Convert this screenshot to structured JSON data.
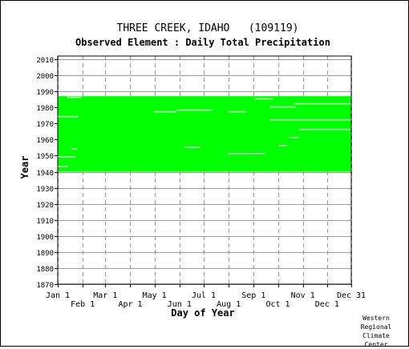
{
  "chart_data": {
    "type": "area",
    "title": "THREE CREEK, IDAHO   (109119)",
    "subtitle": "Observed Element : Daily Total Precipitation",
    "xlabel": "Day of Year",
    "ylabel": "Year",
    "x_ticks_top": [
      "Jan 1",
      "Mar 1",
      "May 1",
      "Jul 1",
      "Sep 1",
      "Nov 1",
      "Dec 31"
    ],
    "x_ticks_bottom": [
      "Feb 1",
      "Apr 1",
      "Jun 1",
      "Aug 1",
      "Oct 1",
      "Dec 1"
    ],
    "x_tick_days": [
      1,
      32,
      60,
      91,
      121,
      152,
      182,
      213,
      244,
      274,
      305,
      335,
      365
    ],
    "xlim": [
      1,
      365
    ],
    "ylim": [
      1870,
      2012
    ],
    "y_ticks": [
      1870,
      1880,
      1890,
      1900,
      1910,
      1920,
      1930,
      1940,
      1950,
      1960,
      1970,
      1980,
      1990,
      2000,
      2010
    ],
    "grid": true,
    "data_color": "#00ff00",
    "series": [
      {
        "name": "",
        "record_start_year": 1940,
        "record_end_year": 1986,
        "gaps": [
          {
            "year": 1943,
            "day_start": 1,
            "day_end": 14
          },
          {
            "year": 1949,
            "day_start": 1,
            "day_end": 23
          },
          {
            "year": 1954,
            "day_start": 18,
            "day_end": 25
          },
          {
            "year": 1955,
            "day_start": 158,
            "day_end": 178
          },
          {
            "year": 1951,
            "day_start": 212,
            "day_end": 258
          },
          {
            "year": 1956,
            "day_start": 275,
            "day_end": 285
          },
          {
            "year": 1961,
            "day_start": 288,
            "day_end": 300
          },
          {
            "year": 1966,
            "day_start": 300,
            "day_end": 365
          },
          {
            "year": 1972,
            "day_start": 264,
            "day_end": 365
          },
          {
            "year": 1974,
            "day_start": 1,
            "day_end": 27
          },
          {
            "year": 1977,
            "day_start": 120,
            "day_end": 148
          },
          {
            "year": 1977,
            "day_start": 212,
            "day_end": 235
          },
          {
            "year": 1978,
            "day_start": 148,
            "day_end": 193
          },
          {
            "year": 1980,
            "day_start": 264,
            "day_end": 296
          },
          {
            "year": 1982,
            "day_start": 294,
            "day_end": 365
          },
          {
            "year": 1985,
            "day_start": 245,
            "day_end": 268
          },
          {
            "year": 1986,
            "day_start": 12,
            "day_end": 30
          }
        ]
      }
    ]
  },
  "credit": [
    "Western",
    "Regional",
    "Climate",
    "Center"
  ]
}
